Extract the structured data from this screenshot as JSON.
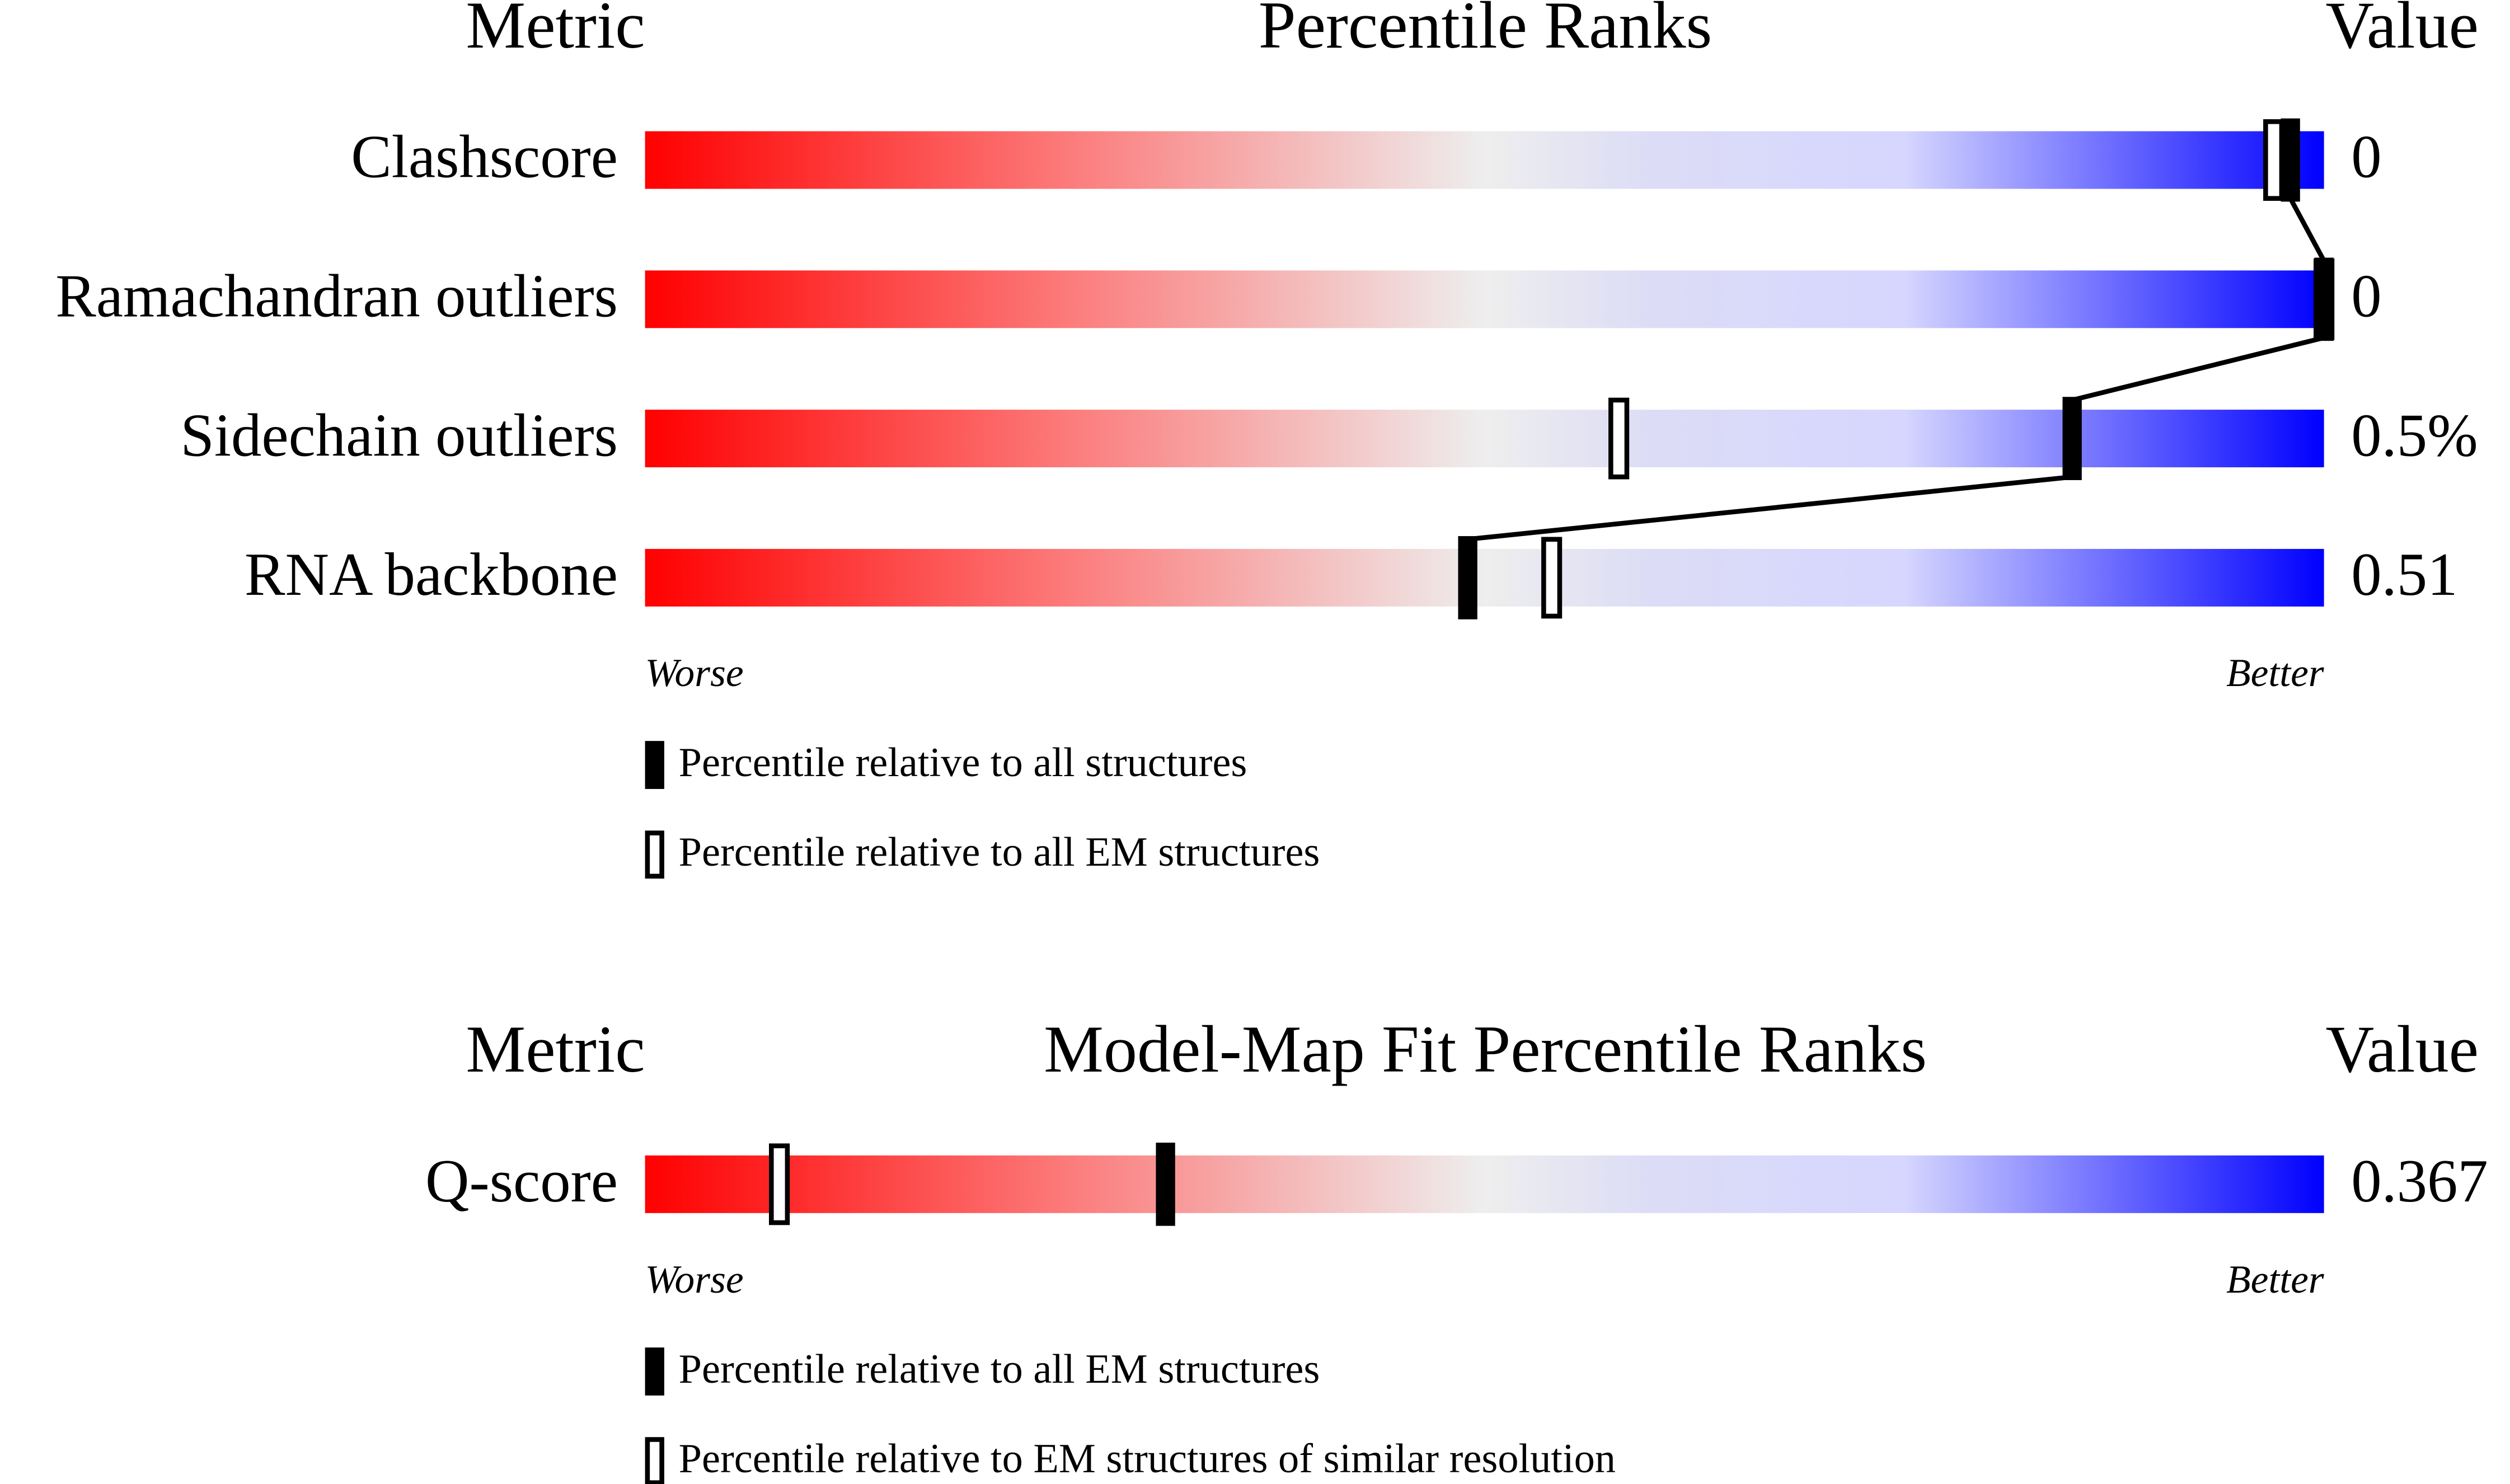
{
  "chart_data": [
    {
      "type": "slider",
      "metric_header": "Metric",
      "title": "Percentile Ranks",
      "value_header": "Value",
      "categories": [
        "Clashscore",
        "Ramachandran outliers",
        "Sidechain outliers",
        "RNA backbone"
      ],
      "series": [
        {
          "name": "Percentile relative to all structures",
          "style": "filled",
          "color": "#000000",
          "values": [
            98,
            100,
            85,
            49
          ]
        },
        {
          "name": "Percentile relative to all EM structures",
          "style": "open",
          "color": "#000000",
          "values": [
            97,
            100,
            58,
            54
          ]
        }
      ],
      "value_labels": [
        "0",
        "0",
        "0.5%",
        "0.51"
      ],
      "xlim": [
        0,
        100
      ],
      "low_label": "Worse",
      "high_label": "Better"
    },
    {
      "type": "slider",
      "metric_header": "Metric",
      "title": "Model-Map Fit Percentile Ranks",
      "value_header": "Value",
      "categories": [
        "Q-score"
      ],
      "series": [
        {
          "name": "Percentile relative to all EM structures",
          "style": "filled",
          "color": "#000000",
          "values": [
            31
          ]
        },
        {
          "name": "Percentile relative to EM structures of similar resolution",
          "style": "open",
          "color": "#000000",
          "values": [
            8
          ]
        }
      ],
      "value_labels": [
        "0.367"
      ],
      "xlim": [
        0,
        100
      ],
      "low_label": "Worse",
      "high_label": "Better"
    }
  ]
}
